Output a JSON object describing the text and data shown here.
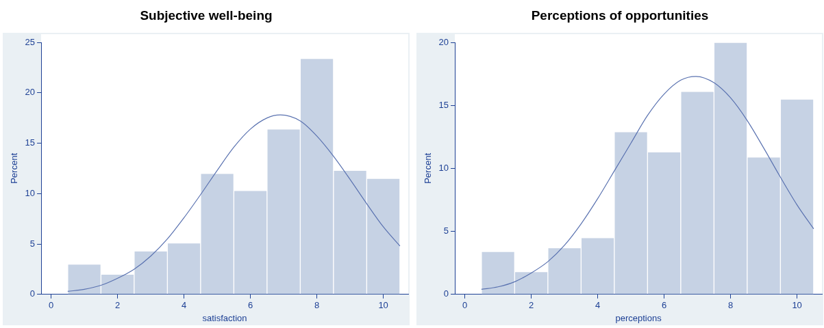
{
  "chart_data": [
    {
      "type": "histogram",
      "title": "Subjective well-being",
      "xlabel": "satisfaction",
      "ylabel": "Percent",
      "xlim": [
        -0.3,
        10.75
      ],
      "xticks": [
        0,
        2,
        4,
        6,
        8,
        10
      ],
      "ylim": [
        0,
        25
      ],
      "yticks": [
        0,
        5,
        10,
        15,
        20,
        25
      ],
      "series": [
        {
          "color": "#c6d2e4",
          "bins": [
            0.5,
            1.5,
            2.5,
            3.5,
            4.5,
            5.5,
            6.5,
            7.5,
            8.5,
            9.5,
            10.5
          ],
          "values": [
            3.0,
            2.0,
            4.3,
            5.1,
            12.0,
            10.3,
            16.4,
            23.4,
            12.3,
            11.5
          ]
        },
        {
          "type": "line",
          "color": "#5a72b0",
          "x": [
            0.5,
            1,
            1.5,
            2,
            2.5,
            3,
            3.5,
            4,
            4.5,
            5,
            5.5,
            6,
            6.5,
            6.9,
            7.5,
            8,
            8.5,
            9,
            9.5,
            10,
            10.5
          ],
          "values": [
            0.3,
            0.5,
            0.9,
            1.6,
            2.5,
            3.8,
            5.5,
            7.6,
            9.9,
            12.3,
            14.6,
            16.4,
            17.5,
            17.8,
            17.2,
            15.7,
            13.7,
            11.4,
            9.0,
            6.7,
            4.8
          ]
        }
      ]
    },
    {
      "type": "histogram",
      "title": "Perceptions of opportunities",
      "xlabel": "perceptions",
      "ylabel": "Percent",
      "xlim": [
        -0.3,
        10.75
      ],
      "xticks": [
        0,
        2,
        4,
        6,
        8,
        10
      ],
      "ylim": [
        0,
        20
      ],
      "yticks": [
        0,
        5,
        10,
        15,
        20
      ],
      "series": [
        {
          "color": "#c6d2e4",
          "bins": [
            0.5,
            1.5,
            2.5,
            3.5,
            4.5,
            5.5,
            6.5,
            7.5,
            8.5,
            9.5,
            10.5
          ],
          "values": [
            3.4,
            1.8,
            3.7,
            4.5,
            12.9,
            11.3,
            16.1,
            20.0,
            10.9,
            15.5
          ]
        },
        {
          "type": "line",
          "color": "#5a72b0",
          "x": [
            0.5,
            1,
            1.5,
            2,
            2.5,
            3,
            3.5,
            4,
            4.5,
            5,
            5.5,
            6,
            6.5,
            6.95,
            7.5,
            8,
            8.5,
            9,
            9.5,
            10,
            10.5
          ],
          "values": [
            0.4,
            0.6,
            1.0,
            1.7,
            2.6,
            3.9,
            5.6,
            7.6,
            9.8,
            12.0,
            14.2,
            15.9,
            17.0,
            17.3,
            16.8,
            15.6,
            13.8,
            11.6,
            9.3,
            7.1,
            5.2
          ]
        }
      ]
    }
  ]
}
